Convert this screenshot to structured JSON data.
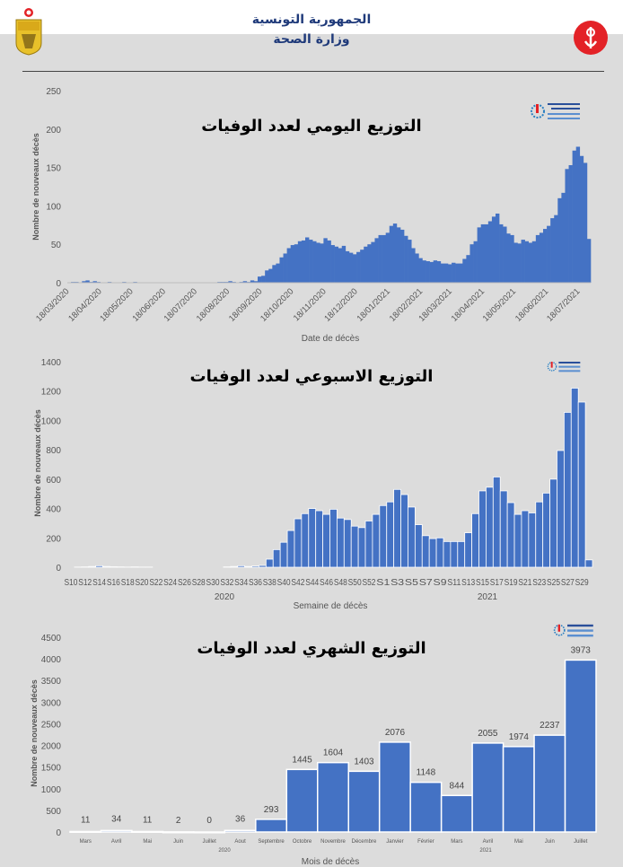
{
  "header": {
    "line1": "الجمهورية التونسية",
    "line2": "وزارة الصحة"
  },
  "colors": {
    "bar": "#4472c4",
    "background": "#dcdcdc",
    "header_text": "#1f3a7a",
    "ministry_logo": "#e32227"
  },
  "icons": {
    "left_logo": "tunisia-coat-of-arms-icon",
    "right_logo": "ministry-of-health-logo-icon",
    "chart_logo": "observatory-logo-icon"
  },
  "chart_data": [
    {
      "type": "bar",
      "title": "التوزيع  اليومي لعدد الوفيات",
      "xlabel": "Date de décès",
      "ylabel": "Nombre de nouveaux décès",
      "ylim": [
        0,
        250
      ],
      "yticks": [
        0,
        50,
        100,
        150,
        200,
        250
      ],
      "xlim": [
        "16/03/2020",
        "28/07/2021"
      ],
      "xticks": [
        "18/03/2020",
        "18/04/2020",
        "18/05/2020",
        "18/06/2020",
        "18/07/2020",
        "18/08/2020",
        "18/09/2020",
        "18/10/2020",
        "18/11/2020",
        "18/12/2020",
        "18/01/2021",
        "18/02/2021",
        "18/03/2021",
        "18/04/2021",
        "18/05/2021",
        "18/06/2021",
        "18/07/2021"
      ],
      "values": [
        0,
        1,
        1,
        0,
        2,
        3,
        1,
        2,
        1,
        0,
        0,
        1,
        0,
        0,
        0,
        1,
        0,
        0,
        1,
        0,
        0,
        0,
        0,
        0,
        0,
        0,
        0,
        0,
        0,
        0,
        0,
        0,
        0,
        0,
        0,
        0,
        0,
        0,
        0,
        0,
        0,
        1,
        1,
        1,
        2,
        1,
        0,
        1,
        2,
        1,
        3,
        2,
        8,
        9,
        16,
        18,
        23,
        25,
        33,
        38,
        45,
        49,
        50,
        54,
        55,
        59,
        56,
        54,
        52,
        51,
        58,
        55,
        49,
        47,
        45,
        48,
        41,
        39,
        37,
        40,
        43,
        47,
        50,
        53,
        58,
        62,
        62,
        65,
        74,
        77,
        72,
        69,
        61,
        56,
        45,
        38,
        32,
        29,
        28,
        27,
        29,
        28,
        25,
        25,
        24,
        26,
        25,
        25,
        31,
        36,
        50,
        54,
        72,
        76,
        76,
        80,
        86,
        90,
        76,
        73,
        64,
        62,
        52,
        51,
        56,
        54,
        52,
        54,
        62,
        65,
        70,
        74,
        84,
        88,
        110,
        117,
        148,
        153,
        172,
        177,
        165,
        156,
        57
      ],
      "grid": false
    },
    {
      "type": "bar",
      "title": "التوزيع  الاسبوعي لعدد الوفيات",
      "xlabel": "Semaine de décès",
      "ylabel": "Nombre de nouveaux décès",
      "ylim": [
        0,
        1400
      ],
      "yticks": [
        0,
        200,
        400,
        600,
        800,
        1000,
        1200,
        1400
      ],
      "groups": [
        {
          "year": "2020",
          "categories": [
            "S10",
            "S11",
            "S12",
            "S13",
            "S14",
            "S15",
            "S16",
            "S17",
            "S18",
            "S19",
            "S20",
            "S21",
            "S22",
            "S23",
            "S24",
            "S25",
            "S26",
            "S27",
            "S28",
            "S29",
            "S30",
            "S31",
            "S32",
            "S33",
            "S34",
            "S35",
            "S36",
            "S37",
            "S38",
            "S39",
            "S40",
            "S41",
            "S42",
            "S43",
            "S44",
            "S45",
            "S46",
            "S47",
            "S48",
            "S49",
            "S50",
            "S51",
            "S52",
            "S53"
          ],
          "values": [
            0,
            1,
            2,
            5,
            10,
            5,
            3,
            2,
            1,
            2,
            1,
            1,
            0,
            0,
            0,
            0,
            0,
            0,
            0,
            0,
            0,
            0,
            2,
            5,
            10,
            5,
            8,
            12,
            55,
            120,
            170,
            250,
            330,
            365,
            400,
            385,
            360,
            395,
            335,
            325,
            280,
            270,
            315,
            360
          ]
        },
        {
          "year": "2021",
          "categories": [
            "S1",
            "S2",
            "S3",
            "S4",
            "S5",
            "S6",
            "S7",
            "S8",
            "S9",
            "S10",
            "S11",
            "S12",
            "S13",
            "S14",
            "S15",
            "S16",
            "S17",
            "S18",
            "S19",
            "S20",
            "S21",
            "S22",
            "S23",
            "S24",
            "S25",
            "S26",
            "S27",
            "S28",
            "S29",
            "S30"
          ],
          "values": [
            420,
            445,
            530,
            495,
            410,
            290,
            215,
            195,
            200,
            175,
            175,
            175,
            235,
            365,
            520,
            545,
            615,
            520,
            440,
            360,
            385,
            370,
            445,
            505,
            600,
            795,
            1055,
            1220,
            1125,
            50
          ]
        }
      ],
      "grid": false
    },
    {
      "type": "bar",
      "title": "التوزيع  الشهري لعدد الوفيات",
      "xlabel": "Mois de décès",
      "ylabel": "Nombre de nouveaux décès",
      "ylim": [
        0,
        4500
      ],
      "yticks": [
        0,
        500,
        1000,
        1500,
        2000,
        2500,
        3000,
        3500,
        4000,
        4500
      ],
      "groups": [
        {
          "year": "2020",
          "categories": [
            "Mars",
            "Avril",
            "Mai",
            "Juin",
            "Juillet",
            "Aout",
            "Septembre",
            "Octobre",
            "Novembre",
            "Décembre"
          ],
          "values": [
            11,
            34,
            11,
            2,
            0,
            36,
            293,
            1445,
            1604,
            1403
          ]
        },
        {
          "year": "2021",
          "categories": [
            "Janvier",
            "Février",
            "Mars",
            "Avril",
            "Mai",
            "Juin",
            "Juillet"
          ],
          "values": [
            2076,
            1148,
            844,
            2055,
            1974,
            2237,
            3973
          ]
        }
      ],
      "data_labels": true,
      "grid": false
    }
  ]
}
